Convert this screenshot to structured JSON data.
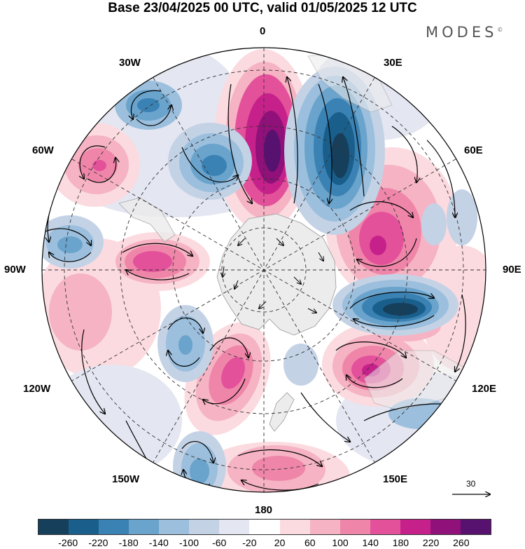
{
  "title": "Base 23/04/2025 00 UTC, valid 01/05/2025 12 UTC",
  "brand": "MODES",
  "brand_mark": "©",
  "longitude_labels": {
    "lon_0": "0",
    "lon_30e": "30E",
    "lon_60e": "60E",
    "lon_90e": "90E",
    "lon_120e": "120E",
    "lon_150e": "150E",
    "lon_180": "180",
    "lon_150w": "150W",
    "lon_120w": "120W",
    "lon_90w": "90W",
    "lon_60w": "60W",
    "lon_30w": "30W"
  },
  "reference_vector_label": "30",
  "colorbar": {
    "colors": [
      "#163f5c",
      "#1a5f8c",
      "#3b82b4",
      "#6aa3cb",
      "#9bbfdd",
      "#c4d2e6",
      "#e4e6f1",
      "#ffffff",
      "#fbdbe0",
      "#f5b3c3",
      "#ef86a9",
      "#e3519a",
      "#c6218a",
      "#8f1179",
      "#57116e"
    ],
    "tick_labels": [
      "-260",
      "-220",
      "-180",
      "-140",
      "-100",
      "-60",
      "-20",
      "20",
      "60",
      "100",
      "140",
      "180",
      "220",
      "260"
    ]
  },
  "anomaly_colors": {
    "strong_positive": "#8f1179",
    "positive": "#e3519a",
    "weak_positive": "#f5b3c3",
    "strong_negative": "#1a5f8c",
    "negative": "#6aa3cb",
    "weak_negative": "#c4d2e6",
    "land": "#ececec"
  }
}
